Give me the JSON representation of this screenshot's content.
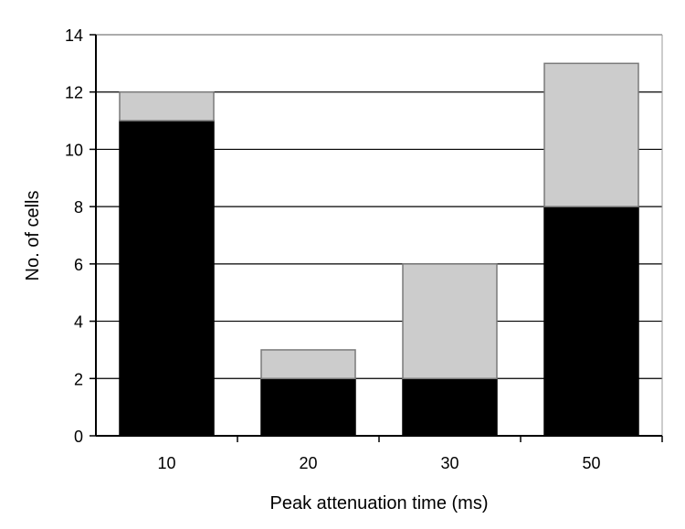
{
  "chart_data": {
    "type": "bar",
    "stacked": true,
    "categories": [
      "10",
      "20",
      "30",
      "50"
    ],
    "series": [
      {
        "values": [
          11,
          2,
          2,
          8
        ],
        "color": "#000000"
      },
      {
        "values": [
          1,
          1,
          4,
          5
        ],
        "color": "#cccccc"
      }
    ],
    "xlabel": "Peak attenuation time (ms)",
    "ylabel": "No. of cells",
    "ylim": [
      0,
      14
    ],
    "yticks": [
      "0",
      "2",
      "4",
      "6",
      "8",
      "10",
      "12",
      "14"
    ],
    "grid": true,
    "legend": "none"
  }
}
